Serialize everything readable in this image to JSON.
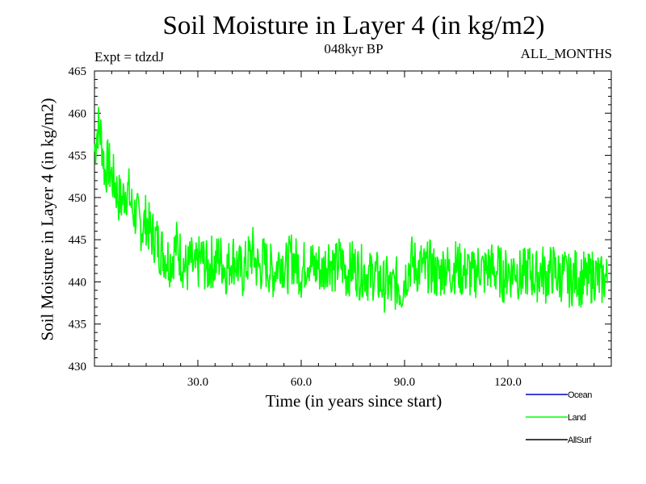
{
  "chart_data": {
    "type": "line",
    "title": "Soil Moisture in Layer 4 (in kg/m2)",
    "subtitle": "048kyr BP",
    "experiment_label": "Expt = tdzdJ",
    "months_label": "ALL_MONTHS",
    "xlabel": "Time (in years since start)",
    "ylabel": "Soil Moisture in Layer 4 (in kg/m2)",
    "xlim": [
      0,
      150
    ],
    "ylim": [
      430,
      465
    ],
    "x_ticks": [
      30,
      60,
      90,
      120
    ],
    "x_tick_labels": [
      "30.0",
      "60.0",
      "90.0",
      "120.0"
    ],
    "y_ticks": [
      430,
      435,
      440,
      445,
      450,
      455,
      460,
      465
    ],
    "y_tick_labels": [
      "430",
      "435",
      "440",
      "445",
      "450",
      "455",
      "460",
      "465"
    ],
    "legend": [
      {
        "name": "Ocean",
        "color": "#0000cc"
      },
      {
        "name": "Land",
        "color": "#00ff00"
      },
      {
        "name": "AllSurf",
        "color": "#000000"
      }
    ],
    "series": [
      {
        "name": "Land",
        "color": "#00ff00",
        "x_start": 0,
        "x_step": 1,
        "values": [
          455.5,
          458.5,
          457.2,
          453.0,
          454.0,
          452.5,
          451.5,
          450.0,
          449.5,
          451.0,
          450.5,
          448.5,
          448.0,
          447.0,
          446.5,
          447.5,
          446.0,
          445.5,
          445.0,
          444.0,
          443.5,
          443.0,
          442.5,
          443.5,
          444.5,
          443.0,
          442.0,
          441.5,
          442.5,
          441.0,
          442.0,
          443.0,
          442.0,
          441.5,
          442.5,
          442.0,
          443.0,
          442.5,
          441.5,
          442.0,
          443.0,
          442.5,
          441.5,
          441.0,
          442.0,
          443.0,
          443.5,
          442.0,
          441.5,
          442.5,
          442.0,
          441.5,
          441.0,
          442.0,
          443.0,
          442.0,
          441.5,
          443.0,
          442.5,
          442.0,
          441.0,
          442.0,
          443.0,
          442.0,
          441.5,
          442.0,
          441.0,
          442.0,
          443.0,
          442.0,
          441.5,
          442.5,
          442.0,
          441.0,
          441.5,
          442.0,
          441.5,
          441.0,
          441.5,
          441.0,
          440.5,
          441.0,
          440.5,
          440.0,
          439.5,
          440.0,
          439.0,
          439.5,
          440.0,
          439.0,
          440.5,
          441.5,
          442.5,
          442.0,
          441.5,
          442.0,
          441.0,
          442.0,
          441.5,
          441.0,
          440.5,
          441.5,
          442.0,
          441.0,
          441.5,
          442.0,
          441.5,
          441.0,
          441.5,
          441.0,
          440.5,
          441.5,
          442.0,
          441.0,
          441.5,
          442.0,
          441.0,
          441.5,
          441.0,
          440.5,
          441.5,
          441.0,
          442.0,
          441.0,
          440.5,
          441.0,
          441.5,
          441.0,
          440.5,
          441.0,
          441.5,
          440.5,
          441.0,
          441.5,
          441.0,
          440.5,
          441.0,
          440.5,
          440.0,
          440.5,
          441.0,
          440.0,
          440.5,
          440.0,
          440.5,
          441.0,
          440.5,
          440.0,
          440.5,
          440.0
        ]
      }
    ]
  }
}
